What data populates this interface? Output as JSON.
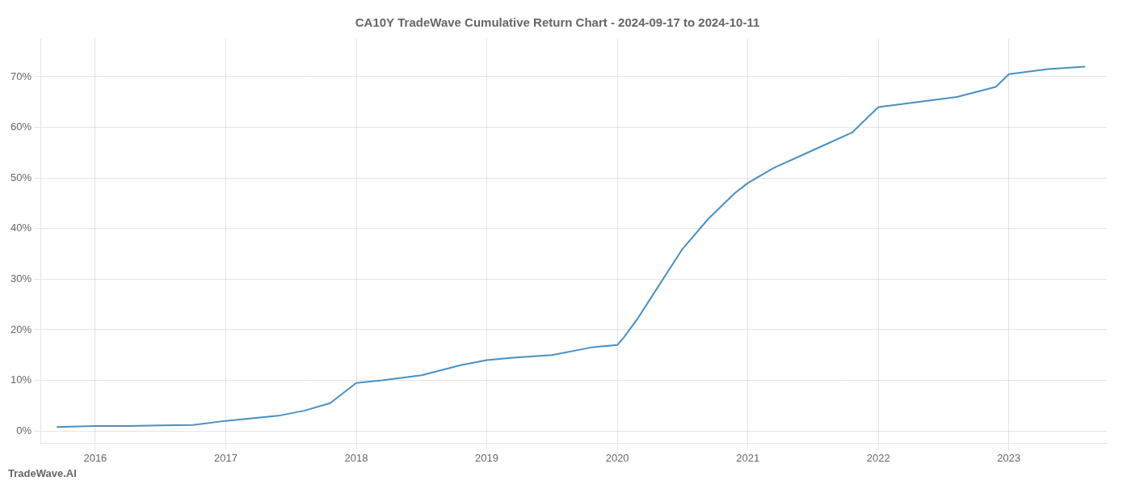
{
  "chart_data": {
    "type": "line",
    "title": "CA10Y TradeWave Cumulative Return Chart - 2024-09-17 to 2024-10-11",
    "annotations": [
      "TradeWave.AI"
    ],
    "x": [
      2015.71,
      2016.0,
      2016.25,
      2016.5,
      2016.75,
      2017.0,
      2017.2,
      2017.4,
      2017.6,
      2017.8,
      2018.0,
      2018.2,
      2018.5,
      2018.8,
      2019.0,
      2019.2,
      2019.5,
      2019.8,
      2020.0,
      2020.05,
      2020.15,
      2020.3,
      2020.5,
      2020.7,
      2020.9,
      2021.0,
      2021.2,
      2021.5,
      2021.8,
      2022.0,
      2022.3,
      2022.6,
      2022.9,
      2023.0,
      2023.3,
      2023.58
    ],
    "values": [
      0.008,
      0.01,
      0.01,
      0.011,
      0.012,
      0.02,
      0.025,
      0.03,
      0.04,
      0.055,
      0.095,
      0.1,
      0.11,
      0.13,
      0.14,
      0.145,
      0.15,
      0.165,
      0.17,
      0.185,
      0.22,
      0.28,
      0.36,
      0.42,
      0.47,
      0.49,
      0.52,
      0.555,
      0.59,
      0.64,
      0.65,
      0.66,
      0.68,
      0.705,
      0.715,
      0.72
    ],
    "color": "#4a90c4",
    "xlim": [
      2015.58,
      2023.75
    ],
    "ylim": [
      -0.025,
      0.775
    ],
    "xticks": [
      2016,
      2017,
      2018,
      2019,
      2020,
      2021,
      2022,
      2023
    ],
    "yticks": [
      {
        "value": 0.0,
        "label": "0%"
      },
      {
        "value": 0.1,
        "label": "10%"
      },
      {
        "value": 0.2,
        "label": "20%"
      },
      {
        "value": 0.3,
        "label": "30%"
      },
      {
        "value": 0.4,
        "label": "40%"
      },
      {
        "value": 0.5,
        "label": "50%"
      },
      {
        "value": 0.6,
        "label": "60%"
      },
      {
        "value": 0.7,
        "label": "70%"
      }
    ],
    "grid": true
  }
}
